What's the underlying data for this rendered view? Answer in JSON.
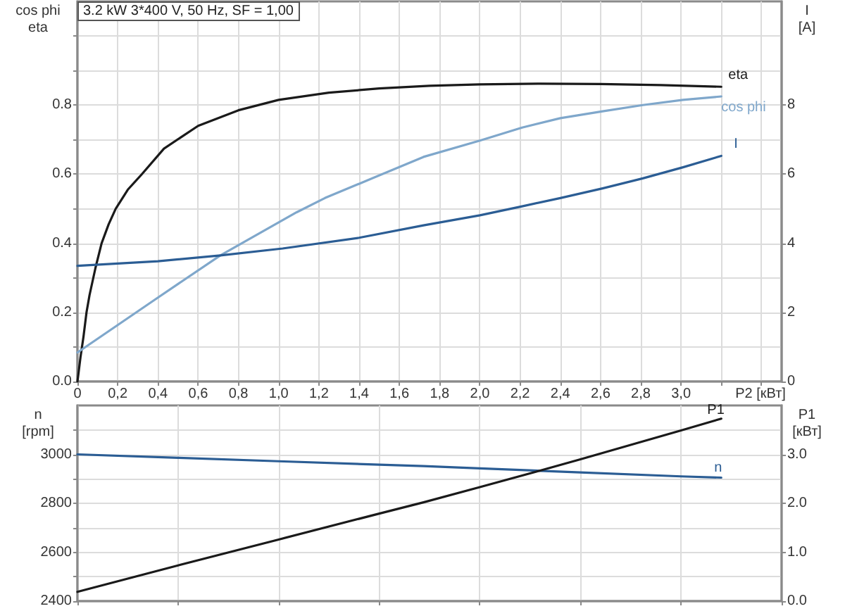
{
  "chart_data": [
    {
      "type": "line",
      "title": "3.2 kW 3*400 V, 50 Hz, SF = 1,00",
      "xlabel": "P2 [кВт]",
      "ylabel": "cos phi\neta",
      "y2label": "I\n[A]",
      "xlim": [
        0,
        3.5
      ],
      "xticks": [
        0,
        {
          "value": 0.2,
          "label": "0,2"
        },
        {
          "value": 0.4,
          "label": "0,4"
        },
        {
          "value": 0.6,
          "label": "0,6"
        },
        {
          "value": 0.8,
          "label": "0,8"
        },
        {
          "value": 1.0,
          "label": "1,0"
        },
        {
          "value": 1.2,
          "label": "1,2"
        },
        {
          "value": 1.4,
          "label": "1,4"
        },
        {
          "value": 1.6,
          "label": "1,6"
        },
        {
          "value": 1.8,
          "label": "1,8"
        },
        {
          "value": 2.0,
          "label": "2,0"
        },
        {
          "value": 2.2,
          "label": "2,2"
        },
        {
          "value": 2.4,
          "label": "2,4"
        },
        {
          "value": 2.6,
          "label": "2,6"
        },
        {
          "value": 2.8,
          "label": "2,8"
        },
        {
          "value": 3.0,
          "label": "3,0"
        },
        {
          "value": 3.2,
          "label": null
        },
        {
          "value": 3.4,
          "label": null
        }
      ],
      "ylim": [
        0,
        1.1
      ],
      "yticks": [
        {
          "value": 0,
          "label": "0.0"
        },
        {
          "value": 0.1,
          "label": null
        },
        0.2,
        {
          "value": 0.3,
          "label": null
        },
        0.4,
        {
          "value": 0.5,
          "label": null
        },
        0.6,
        {
          "value": 0.7,
          "label": null
        },
        0.8,
        {
          "value": 0.9,
          "label": null
        },
        {
          "value": 1.0,
          "label": null
        }
      ],
      "y2lim": [
        0,
        11
      ],
      "y2ticks": [
        0,
        2,
        4,
        6,
        8
      ],
      "grid": true,
      "marker": "none",
      "series": [
        {
          "name": "eta",
          "color": "#1a1a1a",
          "x": [
            0,
            0.015,
            0.03,
            0.045,
            0.06,
            0.09,
            0.12,
            0.155,
            0.19,
            0.25,
            0.32,
            0.43,
            0.6,
            0.8,
            1.0,
            1.25,
            1.5,
            1.75,
            2.0,
            2.3,
            2.6,
            2.9,
            3.2
          ],
          "values": [
            0,
            0.07,
            0.13,
            0.2,
            0.25,
            0.33,
            0.4,
            0.455,
            0.5,
            0.555,
            0.6,
            0.674,
            0.74,
            0.785,
            0.815,
            0.836,
            0.848,
            0.856,
            0.86,
            0.862,
            0.861,
            0.858,
            0.853
          ]
        },
        {
          "name": "cos phi",
          "color": "#7fa7cb",
          "x": [
            0,
            0.4,
            0.71,
            1.09,
            1.23,
            1.72,
            2.0,
            2.21,
            2.4,
            2.61,
            2.81,
            3.01,
            3.2
          ],
          "values": [
            0.084,
            0.243,
            0.365,
            0.49,
            0.531,
            0.65,
            0.697,
            0.735,
            0.762,
            0.782,
            0.8,
            0.815,
            0.825
          ]
        },
        {
          "name": "I",
          "color": "#2b5d94",
          "axis": "y2",
          "x": [
            0,
            0.4,
            0.71,
            1.02,
            1.4,
            1.72,
            2.0,
            2.21,
            2.4,
            2.61,
            2.81,
            3.01,
            3.2
          ],
          "values": [
            3.35,
            3.48,
            3.65,
            3.85,
            4.16,
            4.52,
            4.81,
            5.07,
            5.31,
            5.59,
            5.88,
            6.2,
            6.53
          ]
        }
      ]
    },
    {
      "type": "line",
      "ylabel": "n\n[rpm]",
      "y2label": "P1\n[кВт]",
      "xlim": [
        0,
        3.5
      ],
      "xticks": [
        0,
        0.5,
        1,
        1.5,
        2,
        2.5,
        3,
        3.5
      ],
      "ylim": [
        2400,
        3200
      ],
      "yticks": [
        2400,
        {
          "value": 2500,
          "label": null
        },
        2600,
        {
          "value": 2700,
          "label": null
        },
        2800,
        {
          "value": 2900,
          "label": null
        },
        3000,
        {
          "value": 3100,
          "label": null
        }
      ],
      "y2lim": [
        0,
        4
      ],
      "y2ticks": [
        {
          "value": 0,
          "label": "0.0"
        },
        {
          "value": 1,
          "label": "1.0"
        },
        {
          "value": 2,
          "label": "2.0"
        },
        {
          "value": 3,
          "label": "3.0"
        }
      ],
      "grid": true,
      "marker": "none",
      "tick_labels": "y",
      "series": [
        {
          "name": "n",
          "color": "#2b5d94",
          "x": [
            0,
            0.5,
            1.0,
            1.5,
            1.72,
            2.0,
            2.3,
            2.5,
            3.0,
            3.2
          ],
          "values": [
            3000,
            2986,
            2972,
            2958,
            2952,
            2943,
            2933,
            2926,
            2910,
            2905
          ]
        },
        {
          "name": "P1",
          "color": "#1a1a1a",
          "axis": "y2",
          "x": [
            0,
            0.5,
            1.0,
            1.5,
            1.72,
            2.0,
            2.3,
            2.5,
            3.0,
            3.2
          ],
          "values": [
            0.19,
            0.73,
            1.26,
            1.79,
            2.02,
            2.33,
            2.67,
            2.9,
            3.49,
            3.73
          ]
        }
      ]
    }
  ]
}
